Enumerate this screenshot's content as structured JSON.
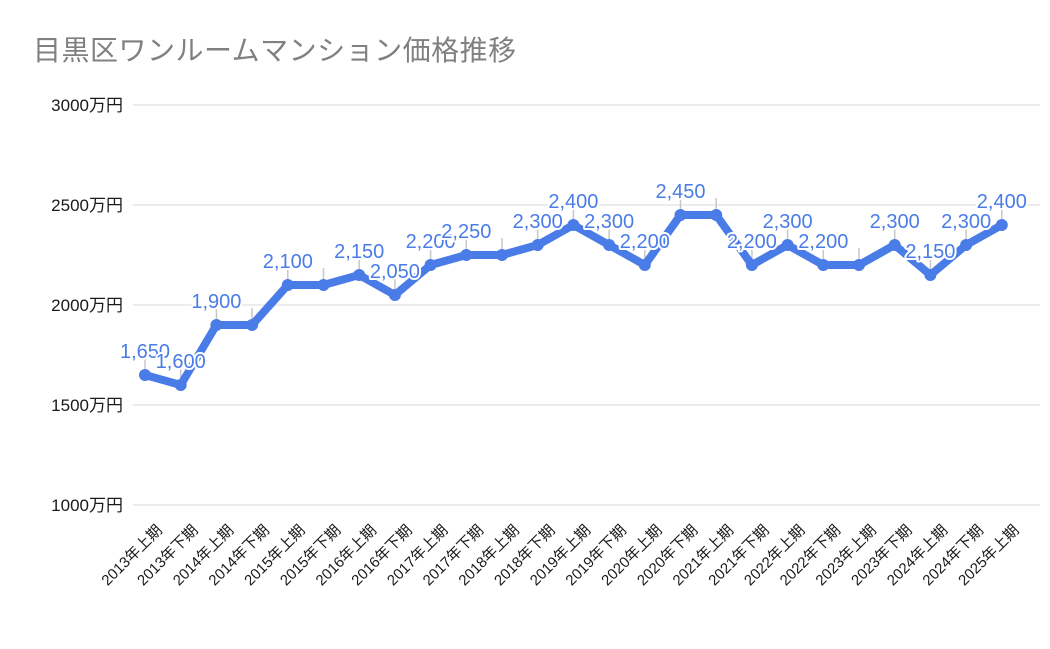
{
  "title": "目黒区ワンルームマンション価格推移",
  "chart_data": {
    "type": "line",
    "title": "目黒区ワンルームマンション価格推移",
    "unit": "万円",
    "x": [
      "2013年上期",
      "2013年下期",
      "2014年上期",
      "2014年下期",
      "2015年上期",
      "2015年下期",
      "2016年上期",
      "2016年下期",
      "2017年上期",
      "2017年下期",
      "2018年上期",
      "2018年下期",
      "2019年上期",
      "2019年下期",
      "2020年上期",
      "2020年下期",
      "2021年上期",
      "2021年下期",
      "2022年上期",
      "2022年下期",
      "2023年上期",
      "2023年下期",
      "2024年上期",
      "2024年下期",
      "2025年上期"
    ],
    "values": [
      1650,
      1600,
      1900,
      1900,
      2100,
      2100,
      2150,
      2050,
      2200,
      2250,
      2250,
      2300,
      2400,
      2300,
      2200,
      2450,
      2450,
      2200,
      2300,
      2200,
      2200,
      2300,
      2150,
      2300,
      2400
    ],
    "point_labels": [
      "1,650",
      "1,600",
      "1,900",
      "",
      "2,100",
      "",
      "2,150",
      "2,050",
      "2,200",
      "2,250",
      "",
      "2,300",
      "2,400",
      "2,300",
      "2,200",
      "2,450",
      "",
      "2,200",
      "2,300",
      "2,200",
      "",
      "2,300",
      "2,150",
      "2,300",
      "2,400"
    ],
    "y_axis": {
      "tick_labels": [
        "3000万円",
        "2500万円",
        "2000万円",
        "1500万円",
        "1000万円"
      ],
      "tick_values": [
        3000,
        2500,
        2000,
        1500,
        1000
      ]
    },
    "ylim": [
      1000,
      3000
    ],
    "grid": "horizontal",
    "legend": "none",
    "colors": {
      "series": "#4a7ce8",
      "point_label": "#4a7ce8",
      "title": "#808080",
      "axis_text": "#1a1a1a",
      "gridline": "#d9d9d9",
      "stem": "#c7c7c7",
      "background": "#ffffff"
    }
  }
}
